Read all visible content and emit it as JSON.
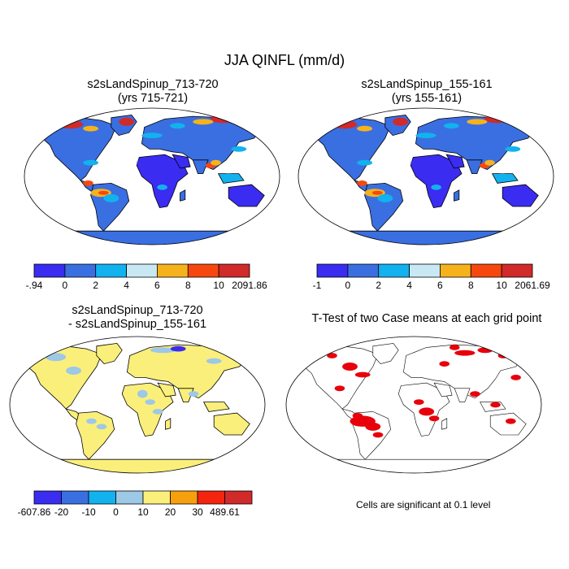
{
  "page": {
    "title": "JJA QINFL (mm/d)"
  },
  "panels": [
    {
      "title_line1": "s2sLandSpinup_713-720",
      "title_line2": "(yrs 715-721)"
    },
    {
      "title_line1": "s2sLandSpinup_155-161",
      "title_line2": "(yrs 155-161)"
    },
    {
      "title_line1": "s2sLandSpinup_713-720",
      "title_line2": "- s2sLandSpinup_155-161"
    },
    {
      "title_line1": "T-Test of two Case means at each grid point",
      "title_line2": ""
    }
  ],
  "note": "Cells are significant at 0.1 level",
  "chart_data": [
    {
      "type": "heatmap",
      "projection": "robinson",
      "title": "s2sLandSpinup_713-720 (yrs 715-721)",
      "colorbar": {
        "labels": [
          "-.94",
          "0",
          "2",
          "4",
          "6",
          "8",
          "10",
          "2091.86"
        ],
        "colors": [
          "#3a2cf0",
          "#3a6fe2",
          "#12b2ef",
          "#c8e9f4",
          "#f6b21d",
          "#f6480e",
          "#d02a2a"
        ]
      }
    },
    {
      "type": "heatmap",
      "projection": "robinson",
      "title": "s2sLandSpinup_155-161 (yrs 155-161)",
      "colorbar": {
        "labels": [
          "-1",
          "0",
          "2",
          "4",
          "6",
          "8",
          "10",
          "2061.69"
        ],
        "colors": [
          "#3a2cf0",
          "#3a6fe2",
          "#12b2ef",
          "#c8e9f4",
          "#f6b21d",
          "#f6480e",
          "#d02a2a"
        ]
      }
    },
    {
      "type": "heatmap",
      "projection": "robinson",
      "title": "s2sLandSpinup_713-720 - s2sLandSpinup_155-161",
      "colorbar": {
        "labels": [
          "-607.86",
          "-20",
          "-10",
          "0",
          "10",
          "20",
          "30",
          "489.61"
        ],
        "colors": [
          "#3a2cf0",
          "#3a6fe2",
          "#12b2ef",
          "#9dc8e6",
          "#fbef7b",
          "#f6a00e",
          "#f5240e",
          "#d02a2a"
        ]
      }
    },
    {
      "type": "heatmap",
      "projection": "robinson",
      "title": "T-Test of two Case means at each grid point",
      "significance_level": "0.1"
    }
  ]
}
